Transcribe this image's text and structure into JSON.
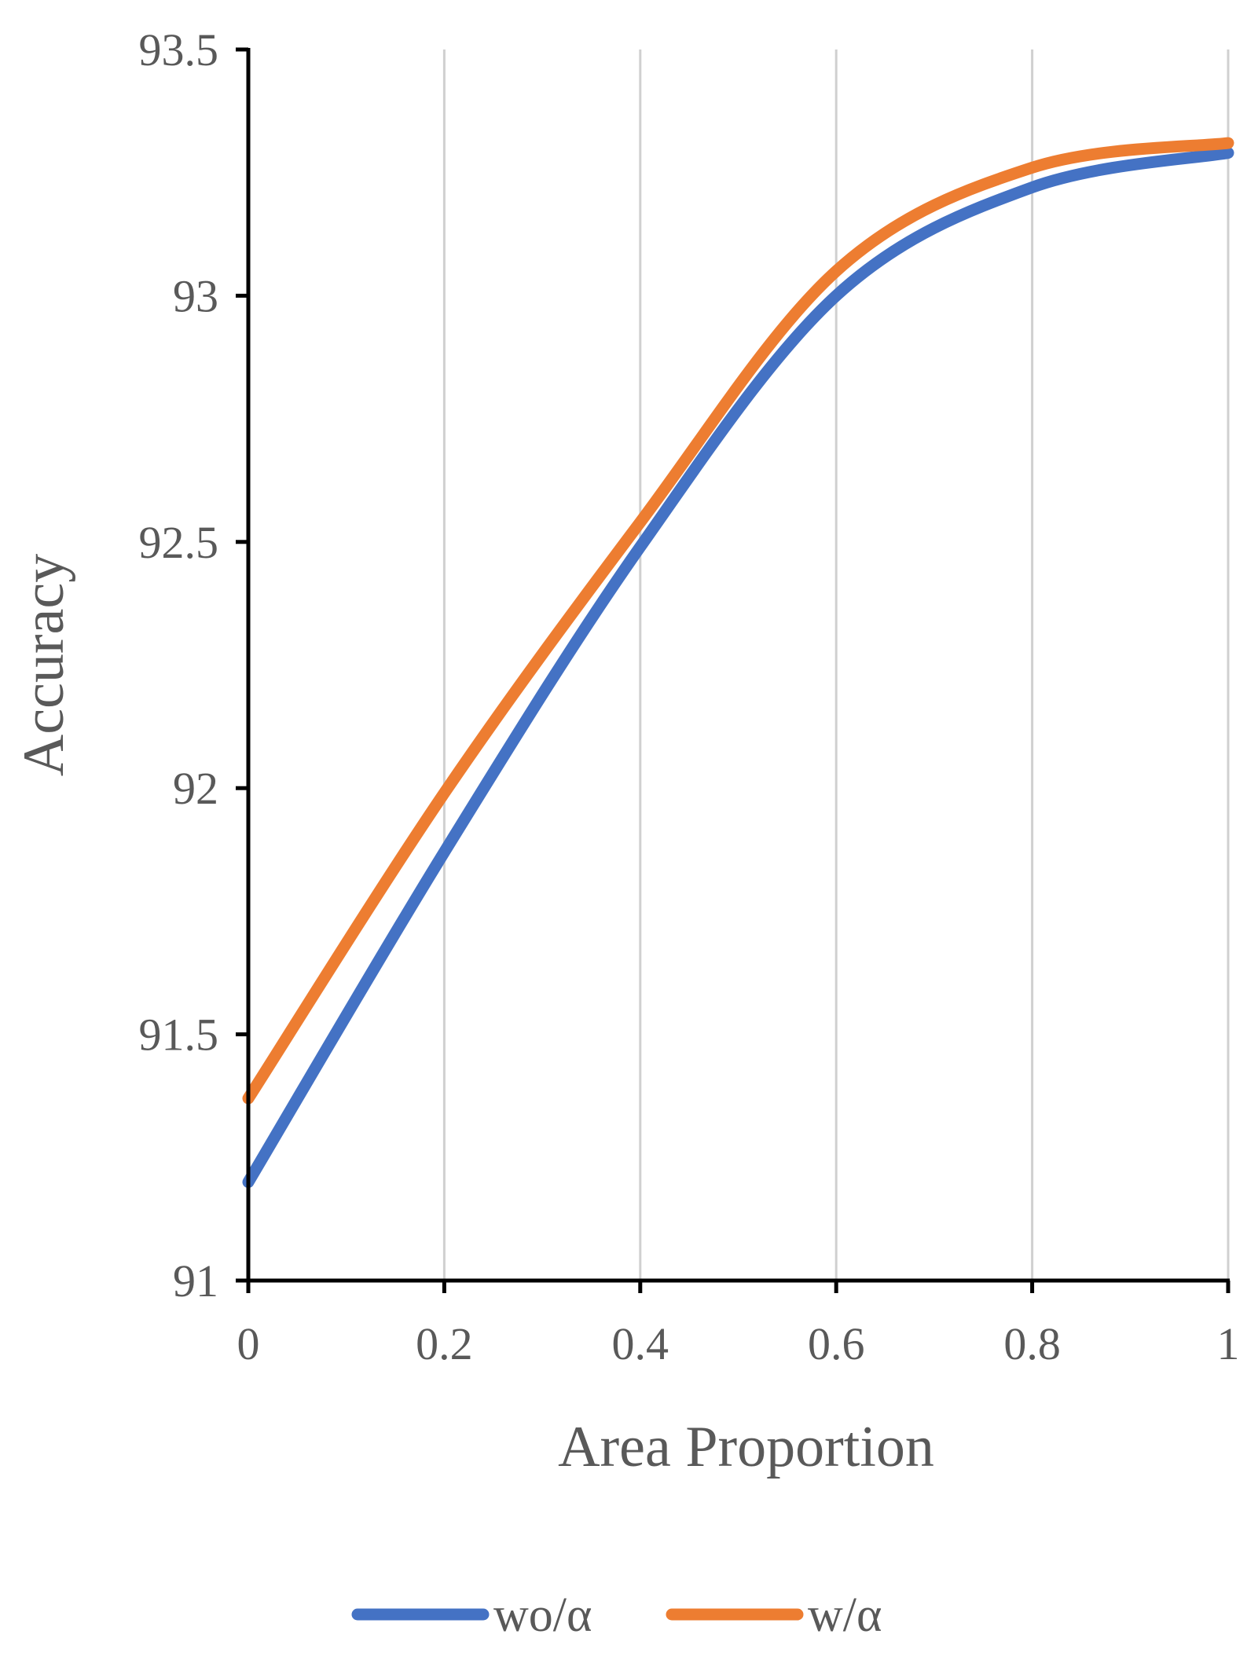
{
  "chart_data": {
    "type": "line",
    "title": "",
    "xlabel": "Area Proportion",
    "ylabel": "Accuracy",
    "x": [
      0,
      0.2,
      0.4,
      0.6,
      0.8,
      1
    ],
    "xlim": [
      0,
      1
    ],
    "ylim": [
      91,
      93.5
    ],
    "x_ticks": [
      "0",
      "0.2",
      "0.4",
      "0.6",
      "0.8",
      "1"
    ],
    "y_ticks": [
      "91",
      "91.5",
      "92",
      "92.5",
      "93",
      "93.5"
    ],
    "grid": "vertical",
    "legend": "bottom",
    "series": [
      {
        "name": "wo/α",
        "color": "#4472C4",
        "values": [
          91.2,
          91.87,
          92.49,
          93.0,
          93.22,
          93.29
        ]
      },
      {
        "name": "w/α",
        "color": "#ED7D31",
        "values": [
          91.37,
          91.99,
          92.54,
          93.05,
          93.26,
          93.31
        ]
      }
    ]
  }
}
